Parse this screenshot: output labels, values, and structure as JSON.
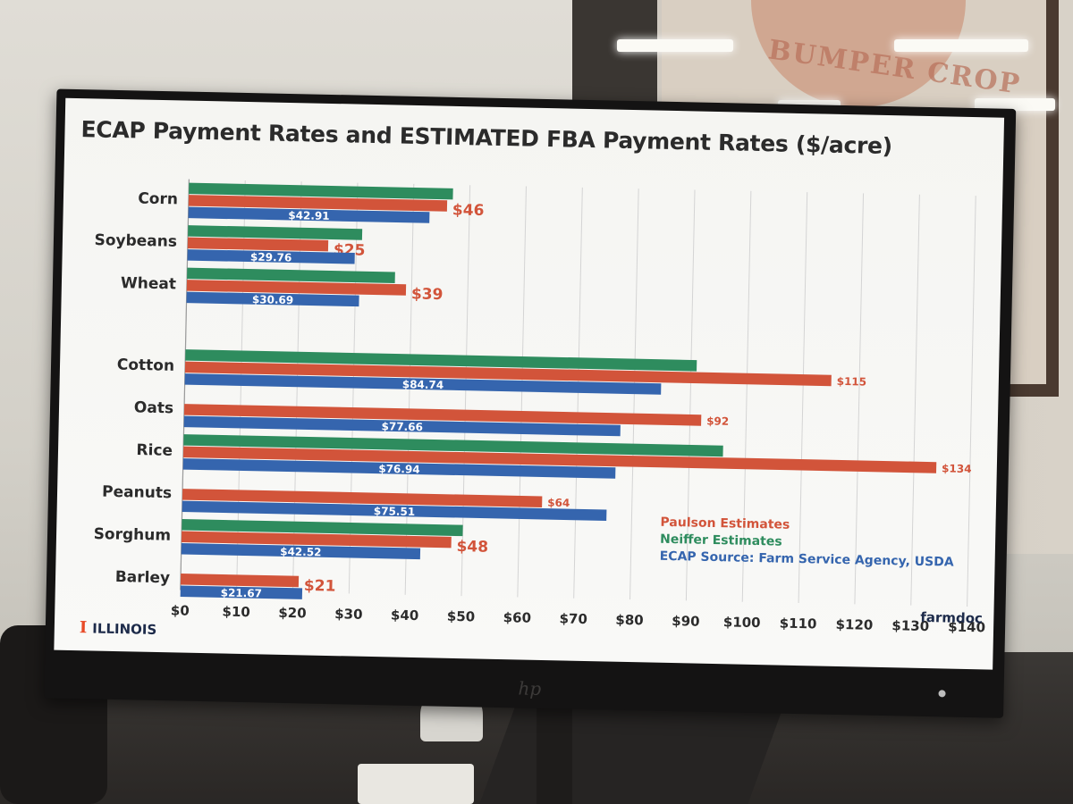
{
  "colors": {
    "paulson": "#d2543a",
    "neiffer": "#2e8c5e",
    "ecap": "#3565ae"
  },
  "chart_data": {
    "type": "bar",
    "orientation": "horizontal",
    "title": "ECAP Payment Rates and ESTIMATED FBA Payment Rates ($/acre)",
    "categories": [
      "Corn",
      "Soybeans",
      "Wheat",
      "Cotton",
      "Oats",
      "Rice",
      "Peanuts",
      "Sorghum",
      "Barley"
    ],
    "series": [
      {
        "name": "Neiffer Estimates",
        "values": [
          47,
          31,
          37,
          91,
          null,
          96,
          null,
          50,
          null
        ],
        "labels": [
          "",
          "",
          "",
          "",
          "",
          "",
          "",
          "",
          ""
        ]
      },
      {
        "name": "Paulson Estimates",
        "values": [
          46,
          25,
          39,
          115,
          92,
          134,
          64,
          48,
          21
        ],
        "labels": [
          "$46",
          "$25",
          "$39",
          "$115",
          "$92",
          "$134",
          "$64",
          "$48",
          "$21"
        ]
      },
      {
        "name": "ECAP Source: Farm Service Agency, USDA",
        "values": [
          42.91,
          29.76,
          30.69,
          84.74,
          77.66,
          76.94,
          75.51,
          42.52,
          21.67
        ],
        "labels": [
          "$42.91",
          "$29.76",
          "$30.69",
          "$84.74",
          "$77.66",
          "$76.94",
          "$75.51",
          "$42.52",
          "$21.67"
        ]
      }
    ],
    "xlim": [
      0,
      140
    ],
    "xticks": [
      0,
      10,
      20,
      30,
      40,
      50,
      60,
      70,
      80,
      90,
      100,
      110,
      120,
      130,
      140
    ],
    "xtick_labels": [
      "$0",
      "$10",
      "$20",
      "$30",
      "$40",
      "$50",
      "$60",
      "$70",
      "$80",
      "$90",
      "$100",
      "$110",
      "$120",
      "$130",
      "$140"
    ],
    "grid": true,
    "legend_position": "bottom-right"
  },
  "footer": {
    "logo_text": "ILLINOIS",
    "logo_mark": "I",
    "brand": "farmdoc"
  },
  "monitor": {
    "brand": "hp"
  },
  "background": {
    "poster_text": "BUMPER CROP"
  }
}
